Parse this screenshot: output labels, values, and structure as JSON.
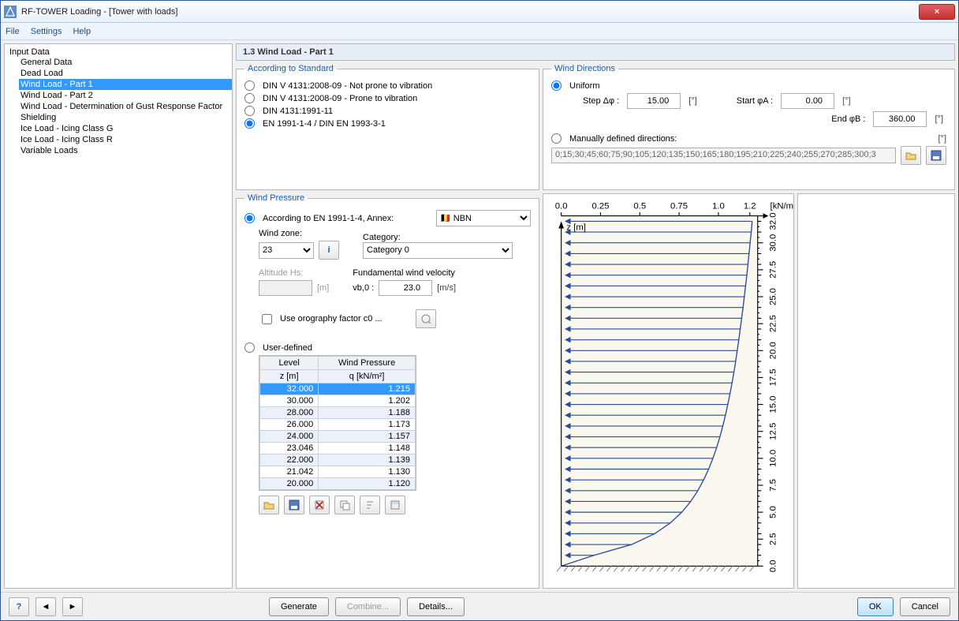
{
  "window": {
    "title": "RF-TOWER Loading - [Tower with loads]"
  },
  "menu": {
    "file": "File",
    "settings": "Settings",
    "help": "Help"
  },
  "tree": {
    "root": "Input Data",
    "items": [
      "General Data",
      "Dead Load",
      "Wind Load - Part 1",
      "Wind Load - Part 2",
      "Wind Load - Determination of Gust Response Factor",
      "Shielding",
      "Ice Load - Icing Class G",
      "Ice Load - Icing Class R",
      "Variable Loads"
    ],
    "selected_index": 2
  },
  "main": {
    "title": "1.3 Wind Load - Part 1"
  },
  "standard": {
    "legend": "According to Standard",
    "opts": [
      "DIN V 4131:2008-09 - Not prone to vibration",
      "DIN V 4131:2008-09 - Prone to vibration",
      "DIN 4131:1991-11",
      "EN 1991-1-4 / DIN EN 1993-3-1"
    ],
    "selected": 3
  },
  "wind_dir": {
    "legend": "Wind Directions",
    "uniform_label": "Uniform",
    "step_label": "Step Δφ :",
    "step_value": "15.00",
    "start_label": "Start φA :",
    "start_value": "0.00",
    "end_label": "End φB :",
    "end_value": "360.00",
    "unit": "[°]",
    "manual_label": "Manually defined directions:",
    "manual_values": "0;15;30;45;60;75;90;105;120;135;150;165;180;195;210;225;240;255;270;285;300;3"
  },
  "wind_pressure": {
    "legend": "Wind Pressure",
    "according_label": "According to EN 1991-1-4, Annex:",
    "annex_value": "NBN",
    "windzone_label": "Wind zone:",
    "windzone_value": "23",
    "category_label": "Category:",
    "category_value": "Category 0",
    "altitude_label": "Altitude Hs:",
    "altitude_unit": "[m]",
    "fund_label": "Fundamental wind velocity",
    "vb_label": "vb,0 :",
    "vb_value": "23.0",
    "vb_unit": "[m/s]",
    "orography_label": "Use orography factor c0 ...",
    "user_defined_label": "User-defined",
    "table": {
      "col1_a": "Level",
      "col1_b": "z [m]",
      "col2_a": "Wind Pressure",
      "col2_b": "q [kN/m²]",
      "rows": [
        {
          "z": "32.000",
          "q": "1.215",
          "sel": true
        },
        {
          "z": "30.000",
          "q": "1.202"
        },
        {
          "z": "28.000",
          "q": "1.188"
        },
        {
          "z": "26.000",
          "q": "1.173"
        },
        {
          "z": "24.000",
          "q": "1.157"
        },
        {
          "z": "23.046",
          "q": "1.148"
        },
        {
          "z": "22.000",
          "q": "1.139"
        },
        {
          "z": "21.042",
          "q": "1.130"
        },
        {
          "z": "20.000",
          "q": "1.120"
        }
      ]
    }
  },
  "chart": {
    "x_unit": "[kN/m²]",
    "z_label": "z [m]",
    "x_ticks": [
      "0.0",
      "0.25",
      "0.5",
      "0.75",
      "1.0",
      "1.2"
    ],
    "z_ticks": [
      "0.0",
      "2.5",
      "5.0",
      "7.5",
      "10.0",
      "12.5",
      "15.0",
      "17.5",
      "20.0",
      "22.5",
      "25.0",
      "27.5",
      "30.0",
      "32.0"
    ],
    "bg": "#fbf8ef",
    "arrow_color": "#2b4b9b",
    "arrows": [
      {
        "z": 32.0,
        "q": 1.215
      },
      {
        "z": 31.0,
        "q": 1.209
      },
      {
        "z": 30.0,
        "q": 1.202
      },
      {
        "z": 29.0,
        "q": 1.195
      },
      {
        "z": 28.0,
        "q": 1.188
      },
      {
        "z": 27.0,
        "q": 1.181
      },
      {
        "z": 26.0,
        "q": 1.173
      },
      {
        "z": 25.0,
        "q": 1.165
      },
      {
        "z": 24.0,
        "q": 1.157
      },
      {
        "z": 23.0,
        "q": 1.148
      },
      {
        "z": 22.0,
        "q": 1.139
      },
      {
        "z": 21.0,
        "q": 1.13
      },
      {
        "z": 20.0,
        "q": 1.12
      },
      {
        "z": 19.0,
        "q": 1.11
      },
      {
        "z": 18.0,
        "q": 1.099
      },
      {
        "z": 17.0,
        "q": 1.087
      },
      {
        "z": 16.0,
        "q": 1.074
      },
      {
        "z": 15.0,
        "q": 1.06
      },
      {
        "z": 14.0,
        "q": 1.045
      },
      {
        "z": 13.0,
        "q": 1.028
      },
      {
        "z": 12.0,
        "q": 1.01
      },
      {
        "z": 11.0,
        "q": 0.989
      },
      {
        "z": 10.0,
        "q": 0.965
      },
      {
        "z": 9.0,
        "q": 0.938
      },
      {
        "z": 8.0,
        "q": 0.906
      },
      {
        "z": 7.0,
        "q": 0.869
      },
      {
        "z": 6.0,
        "q": 0.824
      },
      {
        "z": 5.0,
        "q": 0.767
      },
      {
        "z": 4.0,
        "q": 0.694
      },
      {
        "z": 3.0,
        "q": 0.594
      },
      {
        "z": 2.0,
        "q": 0.448
      },
      {
        "z": 1.0,
        "q": 0.208
      }
    ]
  },
  "buttons": {
    "generate": "Generate",
    "combine": "Combine...",
    "details": "Details...",
    "ok": "OK",
    "cancel": "Cancel"
  }
}
